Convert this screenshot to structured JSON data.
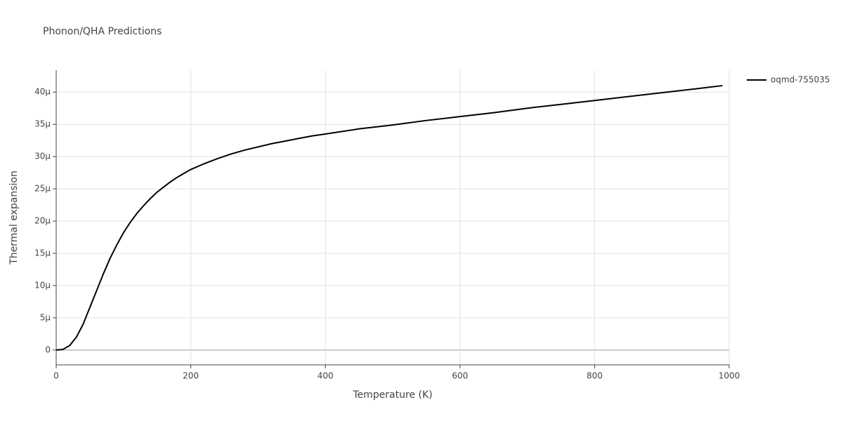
{
  "chart_data": {
    "type": "line",
    "title": "Phonon/QHA Predictions",
    "x_label": "Temperature (K)",
    "y_label": "Thermal expansion",
    "x": [
      0,
      10,
      20,
      30,
      40,
      50,
      60,
      70,
      80,
      90,
      100,
      110,
      120,
      130,
      140,
      150,
      160,
      170,
      180,
      190,
      200,
      220,
      240,
      260,
      280,
      300,
      320,
      340,
      360,
      380,
      400,
      450,
      500,
      550,
      600,
      650,
      700,
      750,
      800,
      850,
      900,
      950,
      990
    ],
    "series": [
      {
        "name": "oqmd-755035",
        "color": "#000000",
        "values": [
          0,
          1e-07,
          7e-07,
          2e-06,
          4e-06,
          6.6e-06,
          9.2e-06,
          1.18e-05,
          1.42e-05,
          1.63e-05,
          1.82e-05,
          1.98e-05,
          2.12e-05,
          2.24e-05,
          2.35e-05,
          2.45e-05,
          2.53e-05,
          2.61e-05,
          2.68e-05,
          2.74e-05,
          2.8e-05,
          2.89e-05,
          2.97e-05,
          3.04e-05,
          3.1e-05,
          3.15e-05,
          3.2e-05,
          3.24e-05,
          3.28e-05,
          3.32e-05,
          3.35e-05,
          3.43e-05,
          3.49e-05,
          3.56e-05,
          3.62e-05,
          3.68e-05,
          3.75e-05,
          3.81e-05,
          3.87e-05,
          3.93e-05,
          3.99e-05,
          4.05e-05,
          4.1e-05
        ]
      }
    ],
    "xlim": [
      0,
      1000
    ],
    "xticks": [
      0,
      200,
      400,
      600,
      800,
      1000
    ],
    "ylim": [
      -2.3e-06,
      4.34e-05
    ],
    "yticks": [
      0,
      {
        "value": 5e-06,
        "label": "5μ"
      },
      {
        "value": 1e-05,
        "label": "10μ"
      },
      {
        "value": 1.5e-05,
        "label": "15μ"
      },
      {
        "value": 2e-05,
        "label": "20μ"
      },
      {
        "value": 2.5e-05,
        "label": "25μ"
      },
      {
        "value": 3e-05,
        "label": "30μ"
      },
      {
        "value": 3.5e-05,
        "label": "35μ"
      },
      {
        "value": 4e-05,
        "label": "40μ"
      }
    ],
    "grid": true,
    "legend": "right"
  }
}
